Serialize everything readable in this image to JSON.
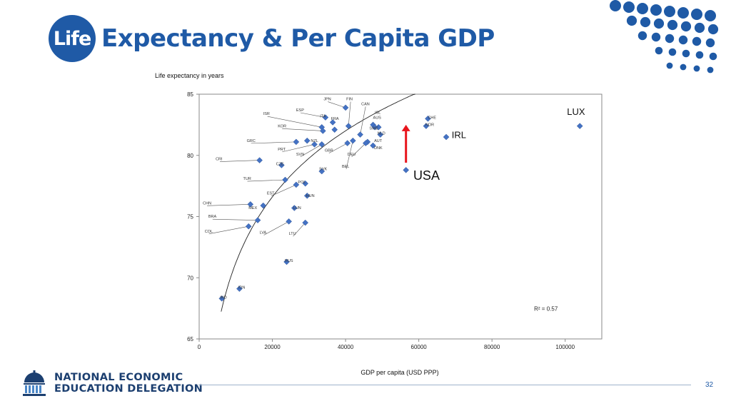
{
  "title": {
    "badge": "Life",
    "rest": "Expectancy & Per Capita GDP"
  },
  "footer": {
    "org_line1": "NATIONAL ECONOMIC",
    "org_line2": "EDUCATION DELEGATION",
    "page_number": "32"
  },
  "colors": {
    "brand_blue": "#1f5aa6",
    "marker": "#4472c4",
    "arrow": "#e8141c",
    "curve": "#222222"
  },
  "chart_data": {
    "type": "scatter",
    "ylabel": "Life expectancy in years",
    "xlabel": "GDP per capita (USD PPP)",
    "xlim": [
      0,
      110000
    ],
    "ylim": [
      65,
      85
    ],
    "x_ticks": [
      0,
      20000,
      40000,
      60000,
      80000,
      100000
    ],
    "y_ticks": [
      65,
      70,
      75,
      80,
      85
    ],
    "r_squared_label": "R² = 0.57",
    "trendline": {
      "type": "log",
      "x_range": [
        6000,
        110000
      ],
      "a": 7.786,
      "b": -0.5
    },
    "highlight_labels": [
      {
        "text": "LUX",
        "x": 100500,
        "y": 83.3,
        "size": "large"
      },
      {
        "text": "IRL",
        "x": 69000,
        "y": 81.4,
        "size": "large"
      },
      {
        "text": "USA",
        "x": 58500,
        "y": 78.0,
        "size": "xlarge"
      }
    ],
    "arrow": {
      "from": [
        56500,
        79.4
      ],
      "to": [
        56500,
        82.5
      ]
    },
    "points": [
      {
        "label": "JPN",
        "x": 40000,
        "y": 83.9,
        "lx": 34000,
        "ly": 84.5
      },
      {
        "label": "FIN",
        "x": 40800,
        "y": 82.4,
        "lx": 40200,
        "ly": 84.5
      },
      {
        "label": "CAN",
        "x": 44000,
        "y": 81.7,
        "lx": 44300,
        "ly": 84.1
      },
      {
        "label": "ESP",
        "x": 34500,
        "y": 83.1,
        "lx": 26500,
        "ly": 83.6
      },
      {
        "label": "ISR",
        "x": 33500,
        "y": 82.3,
        "lx": 17500,
        "ly": 83.3
      },
      {
        "label": "ITA",
        "x": 36500,
        "y": 82.7,
        "lx": 33000,
        "ly": 83.1
      },
      {
        "label": "FRA",
        "x": 37000,
        "y": 82.1,
        "lx": 36000,
        "ly": 82.9
      },
      {
        "label": "ISL",
        "x": 49000,
        "y": 82.3,
        "lx": 48000,
        "ly": 83.4
      },
      {
        "label": "AUS",
        "x": 47500,
        "y": 82.5,
        "lx": 47500,
        "ly": 83.0
      },
      {
        "label": "SWE",
        "x": 48000,
        "y": 82.3,
        "lx": 46500,
        "ly": 82.1
      },
      {
        "label": "CHE",
        "x": 62500,
        "y": 83.0,
        "lx": 62500,
        "ly": 83.0
      },
      {
        "label": "NOR",
        "x": 62000,
        "y": 82.4,
        "lx": 61800,
        "ly": 82.4
      },
      {
        "label": "KOR",
        "x": 33800,
        "y": 82.0,
        "lx": 21500,
        "ly": 82.3
      },
      {
        "label": "NLD",
        "x": 49500,
        "y": 81.7,
        "lx": 48700,
        "ly": 81.7
      },
      {
        "label": "GRC",
        "x": 26500,
        "y": 81.1,
        "lx": 13000,
        "ly": 81.1
      },
      {
        "label": "NZL",
        "x": 29500,
        "y": 81.2,
        "lx": 30500,
        "ly": 81.1
      },
      {
        "label": "AUT",
        "x": 46000,
        "y": 81.1,
        "lx": 47800,
        "ly": 81.1
      },
      {
        "label": "DNK",
        "x": 47500,
        "y": 80.8,
        "lx": 47800,
        "ly": 80.5
      },
      {
        "label": "PRT",
        "x": 31500,
        "y": 80.9,
        "lx": 21500,
        "ly": 80.4
      },
      {
        "label": "GBR",
        "x": 40500,
        "y": 81.0,
        "lx": 34300,
        "ly": 80.3
      },
      {
        "label": "SVN",
        "x": 33500,
        "y": 80.9,
        "lx": 26500,
        "ly": 80.0
      },
      {
        "label": "DEU",
        "x": 45500,
        "y": 81.0,
        "lx": 40500,
        "ly": 80.0
      },
      {
        "label": "CRI",
        "x": 16500,
        "y": 79.6,
        "lx": 4500,
        "ly": 79.6
      },
      {
        "label": "CZE",
        "x": 22500,
        "y": 79.2,
        "lx": 21000,
        "ly": 79.2
      },
      {
        "label": "BEL",
        "x": 42000,
        "y": 81.2,
        "lx": 39000,
        "ly": 79.0
      },
      {
        "label": "SVK",
        "x": 33500,
        "y": 78.7,
        "lx": 32800,
        "ly": 78.8
      },
      {
        "label": "TUR",
        "x": 23500,
        "y": 78.0,
        "lx": 12000,
        "ly": 78.0
      },
      {
        "label": "POL",
        "x": 29000,
        "y": 77.7,
        "lx": 27000,
        "ly": 77.7
      },
      {
        "label": "EST",
        "x": 26500,
        "y": 77.6,
        "lx": 18500,
        "ly": 76.8
      },
      {
        "label": "HUN",
        "x": 29500,
        "y": 76.7,
        "lx": 29200,
        "ly": 76.6
      },
      {
        "label": "CHN",
        "x": 14000,
        "y": 76.0,
        "lx": 1000,
        "ly": 76.0
      },
      {
        "label": "MEX",
        "x": 17500,
        "y": 75.9,
        "lx": 13500,
        "ly": 75.6
      },
      {
        "label": "LUN",
        "x": 26000,
        "y": 75.7,
        "lx": 25700,
        "ly": 75.6
      },
      {
        "label": "BRA",
        "x": 16000,
        "y": 74.7,
        "lx": 2500,
        "ly": 74.9
      },
      {
        "label": "COL",
        "x": 13500,
        "y": 74.2,
        "lx": 1500,
        "ly": 73.7
      },
      {
        "label": "LVA",
        "x": 24500,
        "y": 74.6,
        "lx": 16500,
        "ly": 73.6
      },
      {
        "label": "LTU",
        "x": 29000,
        "y": 74.5,
        "lx": 24500,
        "ly": 73.5
      },
      {
        "label": "RUS",
        "x": 23900,
        "y": 71.3,
        "lx": 23400,
        "ly": 71.3
      },
      {
        "label": "IDN",
        "x": 11000,
        "y": 69.1,
        "lx": 10700,
        "ly": 69.1
      },
      {
        "label": "IND",
        "x": 6200,
        "y": 68.3,
        "lx": 5700,
        "ly": 68.3
      },
      {
        "label": "USA",
        "x": 56500,
        "y": 78.8
      },
      {
        "label": "IRL",
        "x": 67500,
        "y": 81.5
      },
      {
        "label": "LUX",
        "x": 104000,
        "y": 82.4
      }
    ]
  }
}
